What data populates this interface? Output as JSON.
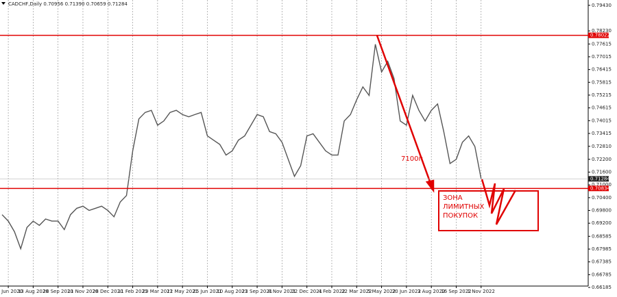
{
  "chart_data": {
    "type": "line",
    "title": "CADCHF,Daily  0.70956 0.71390 0.70659 0.71284",
    "categories": [
      null,
      "30 Jun 2020",
      null,
      null,
      null,
      "13 Aug 2020",
      null,
      null,
      null,
      "28 Sep 2020",
      null,
      null,
      null,
      "11 Nov 2020",
      null,
      null,
      null,
      "28 Dec 2020",
      null,
      null,
      null,
      "11 Feb 2021",
      null,
      null,
      null,
      "29 Mar 2021",
      null,
      null,
      null,
      "12 May 2021",
      null,
      null,
      null,
      "25 Jun 2021",
      null,
      null,
      null,
      "10 Aug 2021",
      null,
      null,
      null,
      "23 Sep 2021",
      null,
      null,
      null,
      "8 Nov 2021",
      null,
      null,
      null,
      "22 Dec 2021",
      null,
      null,
      null,
      "4 Feb 2022",
      null,
      null,
      null,
      "22 Mar 2022",
      null,
      null,
      null,
      "5 May 2022",
      null,
      null,
      null,
      "20 Jun 2022",
      null,
      null,
      null,
      "3 Aug 2022",
      null,
      null,
      null,
      "16 Sep 2022",
      null,
      null,
      null,
      "1 Nov 2022"
    ],
    "series": [
      {
        "name": "CADCHF",
        "color": "#555555",
        "values": [
          0.696,
          0.693,
          0.688,
          0.68,
          0.69,
          0.693,
          0.691,
          0.694,
          0.693,
          0.693,
          0.689,
          0.696,
          0.699,
          0.7,
          0.698,
          0.699,
          0.7,
          0.698,
          0.695,
          0.702,
          0.705,
          0.726,
          0.741,
          0.744,
          0.745,
          0.738,
          0.74,
          0.744,
          0.745,
          0.743,
          0.742,
          0.743,
          0.744,
          0.733,
          0.731,
          0.729,
          0.724,
          0.726,
          0.731,
          0.733,
          0.738,
          0.743,
          0.742,
          0.735,
          0.734,
          0.73,
          0.722,
          0.714,
          0.719,
          0.733,
          0.734,
          0.73,
          0.726,
          0.724,
          0.724,
          0.74,
          0.743,
          0.75,
          0.756,
          0.752,
          0.776,
          0.763,
          0.768,
          0.76,
          0.74,
          0.738,
          0.752,
          0.745,
          0.74,
          0.745,
          0.748,
          0.735,
          0.72,
          0.722,
          0.73,
          0.733,
          0.728,
          0.71284
        ]
      }
    ],
    "ylim": [
      0.6625,
      0.7968
    ],
    "yticks": [
      {
        "value": 0.7943,
        "label": "0.79430"
      },
      {
        "value": 0.7823,
        "label": "0.78230"
      },
      0.77615,
      0.77015,
      0.76415,
      0.75815,
      0.75215,
      0.74615,
      0.74015,
      0.73415,
      {
        "value": 0.7281,
        "label": "0.72810"
      },
      {
        "value": 0.722,
        "label": "0.72200"
      },
      {
        "value": 0.716,
        "label": "0.71600"
      },
      {
        "value": 0.71,
        "label": "0.71000"
      },
      {
        "value": 0.704,
        "label": "0.70400"
      },
      {
        "value": 0.698,
        "label": "0.69800"
      },
      {
        "value": 0.692,
        "label": "0.69200"
      },
      0.68585,
      0.67985,
      0.67385,
      0.66785,
      0.66185
    ],
    "hlines": [
      {
        "value": 0.78022,
        "color": "#e00000"
      },
      {
        "value": 0.70834,
        "color": "#e00000"
      }
    ],
    "current_price": 0.71284,
    "annotations": {
      "distance": "7100п",
      "zone": [
        "ЗОНА",
        "ЛИМИТНЫХ",
        "ПОКУПОК"
      ]
    }
  }
}
